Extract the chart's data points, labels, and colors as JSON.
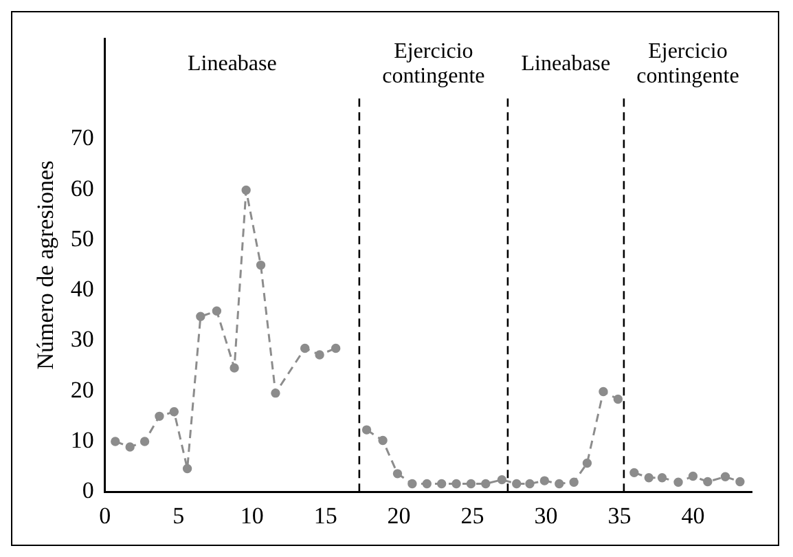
{
  "chart_data": {
    "type": "line",
    "ylabel": "Número de agresiones",
    "series": [
      {
        "color": "#8c8c8c",
        "x": [
          0.7,
          1.7,
          2.7,
          3.7,
          4.7,
          5.6,
          6.5,
          7.6,
          8.8,
          9.6,
          10.6,
          11.6,
          13.6,
          14.6,
          15.7
        ],
        "values": [
          10,
          8.9,
          10,
          15,
          15.9,
          4.6,
          34.8,
          35.9,
          24.6,
          59.9,
          45,
          19.6,
          28.5,
          27.2,
          28.5
        ]
      },
      {
        "color": "#8c8c8c",
        "x": [
          17.8,
          18.9,
          19.9,
          20.9,
          21.9,
          22.9,
          23.9,
          24.9,
          25.9,
          27.0,
          28.0,
          28.9,
          29.9,
          30.9,
          31.9,
          32.8,
          33.9,
          34.9
        ],
        "values": [
          12.3,
          10.2,
          3.6,
          1.6,
          1.6,
          1.6,
          1.6,
          1.6,
          1.6,
          2.4,
          1.6,
          1.6,
          2.2,
          1.6,
          1.9,
          5.7,
          19.9,
          18.4
        ]
      },
      {
        "color": "#8c8c8c",
        "x": [
          36.0,
          37.0,
          37.9,
          39.0,
          40.0,
          41.0,
          42.2,
          43.2
        ],
        "values": [
          3.8,
          2.8,
          2.8,
          1.9,
          3.1,
          2.0,
          3.0,
          2.0
        ]
      }
    ],
    "xlim": [
      0,
      44
    ],
    "xticks": [
      0,
      5,
      10,
      15,
      20,
      25,
      30,
      35,
      40
    ],
    "ylim": [
      0,
      90
    ],
    "yticks": [
      0,
      10,
      20,
      30,
      40,
      50,
      60,
      70
    ],
    "ref_lines": [
      {
        "axis": "x",
        "value": 17.3,
        "color": "#000000",
        "line_style": "dashed"
      },
      {
        "axis": "x",
        "value": 27.4,
        "color": "#000000",
        "line_style": "dashed"
      },
      {
        "axis": "x",
        "value": 35.3,
        "color": "#000000",
        "line_style": "dashed"
      }
    ],
    "annotations": [
      "Lineabase",
      "Ejercicio\ncontingente",
      "Lineabase",
      "Ejercicio\ncontingente"
    ],
    "marker": "circle",
    "line_style": "dashed",
    "grid": false,
    "legend": false
  }
}
